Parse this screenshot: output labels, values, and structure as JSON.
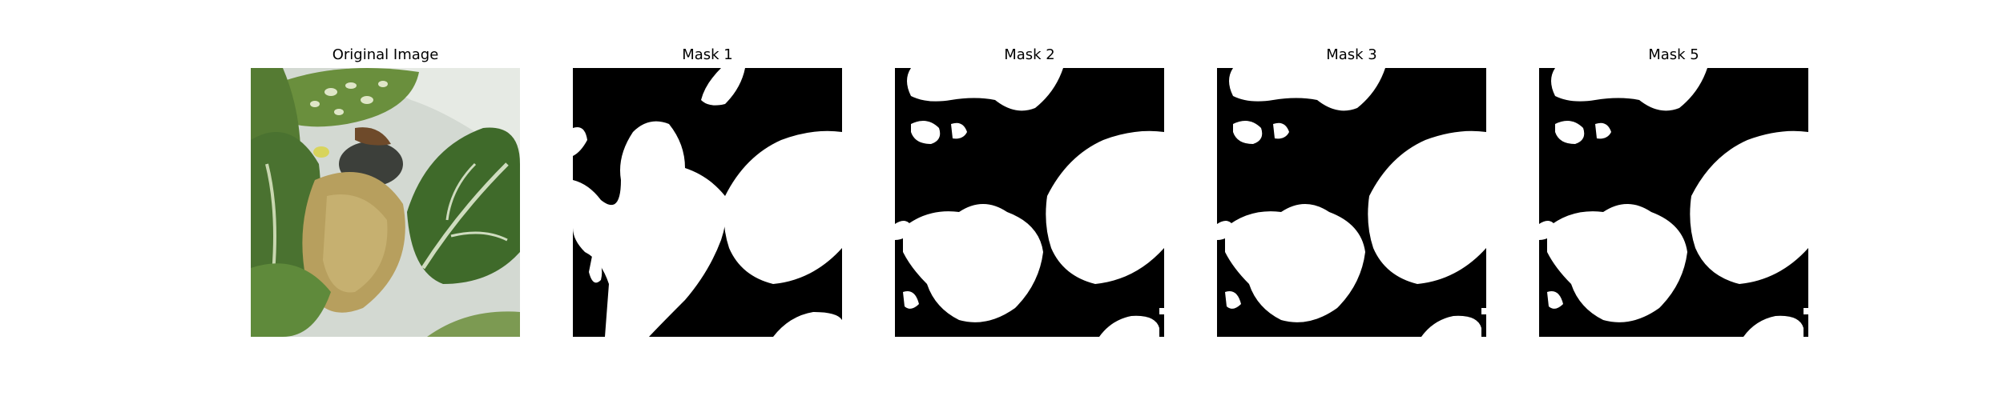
{
  "figure": {
    "panels": [
      {
        "title": "Original Image",
        "kind": "photo"
      },
      {
        "title": "Mask 1",
        "kind": "mask",
        "variant": 1
      },
      {
        "title": "Mask 2",
        "kind": "mask",
        "variant": 2
      },
      {
        "title": "Mask 3",
        "kind": "mask",
        "variant": 3
      },
      {
        "title": "Mask 5",
        "kind": "mask",
        "variant": 5
      }
    ]
  },
  "colors": {
    "background": "#ffffff",
    "mask_foreground": "#ffffff",
    "mask_background": "#000000",
    "leaf_dark": "#3f6a2a",
    "leaf_mid": "#6e9a45",
    "leaf_light": "#a6c07a",
    "leaf_yellow": "#b9a262",
    "backdrop": "#d6dcd5"
  }
}
